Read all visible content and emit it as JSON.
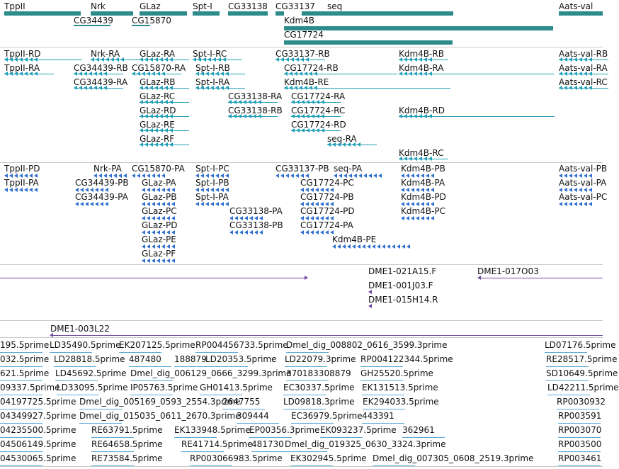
{
  "genes": [
    {
      "label": "TppII"
    },
    {
      "label": "Nrk"
    },
    {
      "label": "GLaz"
    },
    {
      "label": "Spt-I"
    },
    {
      "label": "CG33138"
    },
    {
      "label": "CG33137"
    },
    {
      "label": "seq"
    },
    {
      "label": "Aats-val"
    },
    {
      "label": "CG34439"
    },
    {
      "label": "CG15870"
    },
    {
      "label": "Kdm4B"
    },
    {
      "label": "CG17724"
    }
  ],
  "transcripts": [
    "TppII-RD",
    "Nrk-RA",
    "GLaz-RA",
    "Spt-I-RC",
    "CG33137-RB",
    "Kdm4B-RB",
    "Aats-val-RB",
    "TppII-RA",
    "CG34439-RB",
    "CG15870-RA",
    "Spt-I-RB",
    "CG17724-RB",
    "Kdm4B-RA",
    "Aats-val-RA",
    "CG34439-RA",
    "GLaz-RB",
    "Spt-I-RA",
    "Kdm4B-RE",
    "Aats-val-RC",
    "GLaz-RC",
    "CG33138-RA",
    "CG17724-RA",
    "GLaz-RD",
    "CG33138-RB",
    "CG17724-RC",
    "Kdm4B-RD",
    "GLaz-RE",
    "CG17724-RD",
    "GLaz-RF",
    "seq-RA",
    "Kdm4B-RC"
  ],
  "proteins": [
    "TppII-PD",
    "Nrk-PA",
    "CG15870-PA",
    "Spt-I-PC",
    "CG33137-PB",
    "seq-PA",
    "Kdm4B-PB",
    "Aats-val-PB",
    "TppII-PA",
    "CG34439-PB",
    "GLaz-PA",
    "Spt-I-PB",
    "CG17724-PC",
    "Kdm4B-PA",
    "Aats-val-PA",
    "CG34439-PA",
    "GLaz-PB",
    "Spt-I-PA",
    "CG17724-PB",
    "Kdm4B-PD",
    "Aats-val-PC",
    "GLaz-PC",
    "CG33138-PA",
    "CG17724-PD",
    "Kdm4B-PC",
    "GLaz-PD",
    "CG33138-PB",
    "CG17724-PA",
    "GLaz-PE",
    "Kdm4B-PE",
    "GLaz-PF"
  ],
  "clones": [
    "DME1-021A15.F",
    "DME1-017O03",
    "DME1-001J03.F",
    "DME1-015H14.R",
    "DME1-003L22"
  ],
  "ests": [
    "195.5prime",
    "LD35490.5prime",
    "EK207125.5prime",
    "RP004456733.5prime",
    "Dmel_dig_008802_0616_3599.3prime",
    "LD07176.5prime",
    "032.5prime",
    "LD28818.5prime",
    "487480",
    "188879",
    "LD20353.5prime",
    "LD22079.3prime",
    "RP004122344.5prime",
    "RE28517.5prime",
    "621.5prime",
    "LD45692.5prime",
    "Dmel_dig_006129_0666_3299.3prime",
    "370183308879",
    "GH25520.5prime",
    "SD10649.5prime",
    "09337.5prime",
    "LD33095.5prime",
    "IP05763.5prime",
    "GH01413.5prime",
    "EC30337.5prime",
    "EK131513.5prime",
    "LD42211.5prime",
    "04197725.5prime",
    "Dmel_dig_005169_0593_2554.3prime",
    "2647755",
    "LD09818.3prime",
    "EK294033.5prime",
    "RP0030932",
    "04349927.5prime",
    "Dmel_dig_015035_0611_2670.3prime",
    "309444",
    "EC36979.5prime",
    "443391",
    "RP003591",
    "04235500.5prime",
    "RE63791.5prime",
    "EK133948.5prime",
    "EP00356.3prime",
    "EK093237.5prime",
    "362961",
    "RP003070",
    "04506149.5prime",
    "RE64658.5prime",
    "RE41714.5prime",
    "481730",
    "Dmel_dig_019325_0630_3324.3prime",
    "RP003500",
    "04530065.5prime",
    "RE73584.5prime",
    "RP003066983.5prime",
    "EK302945.5prime",
    "Dmel_dig_007305_0608_2519.3prime",
    "RP003461"
  ]
}
